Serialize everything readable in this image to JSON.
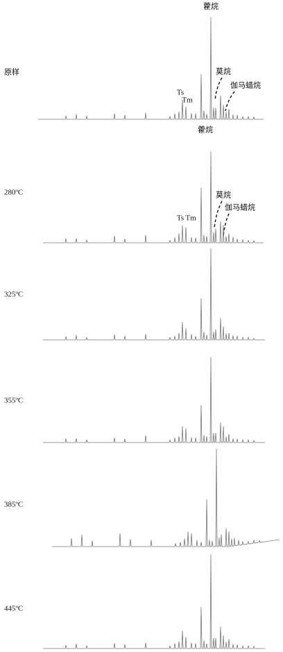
{
  "panels": [
    {
      "label": "原样",
      "annotations": {
        "hopane": "藿烷",
        "ts": "Ts",
        "tm": "Tm",
        "moretane": "莫烷",
        "gammacerane": "伽马蜡烷"
      }
    },
    {
      "label": "280ºC",
      "annotations": {
        "hopane": "藿烷",
        "ts": "Ts",
        "tm": "Tm",
        "moretane": "莫烷",
        "gammacerane": "伽马蜡烷"
      }
    },
    {
      "label": "325ºC"
    },
    {
      "label": "355ºC"
    },
    {
      "label": "385ºC"
    },
    {
      "label": "445ºC"
    }
  ]
}
